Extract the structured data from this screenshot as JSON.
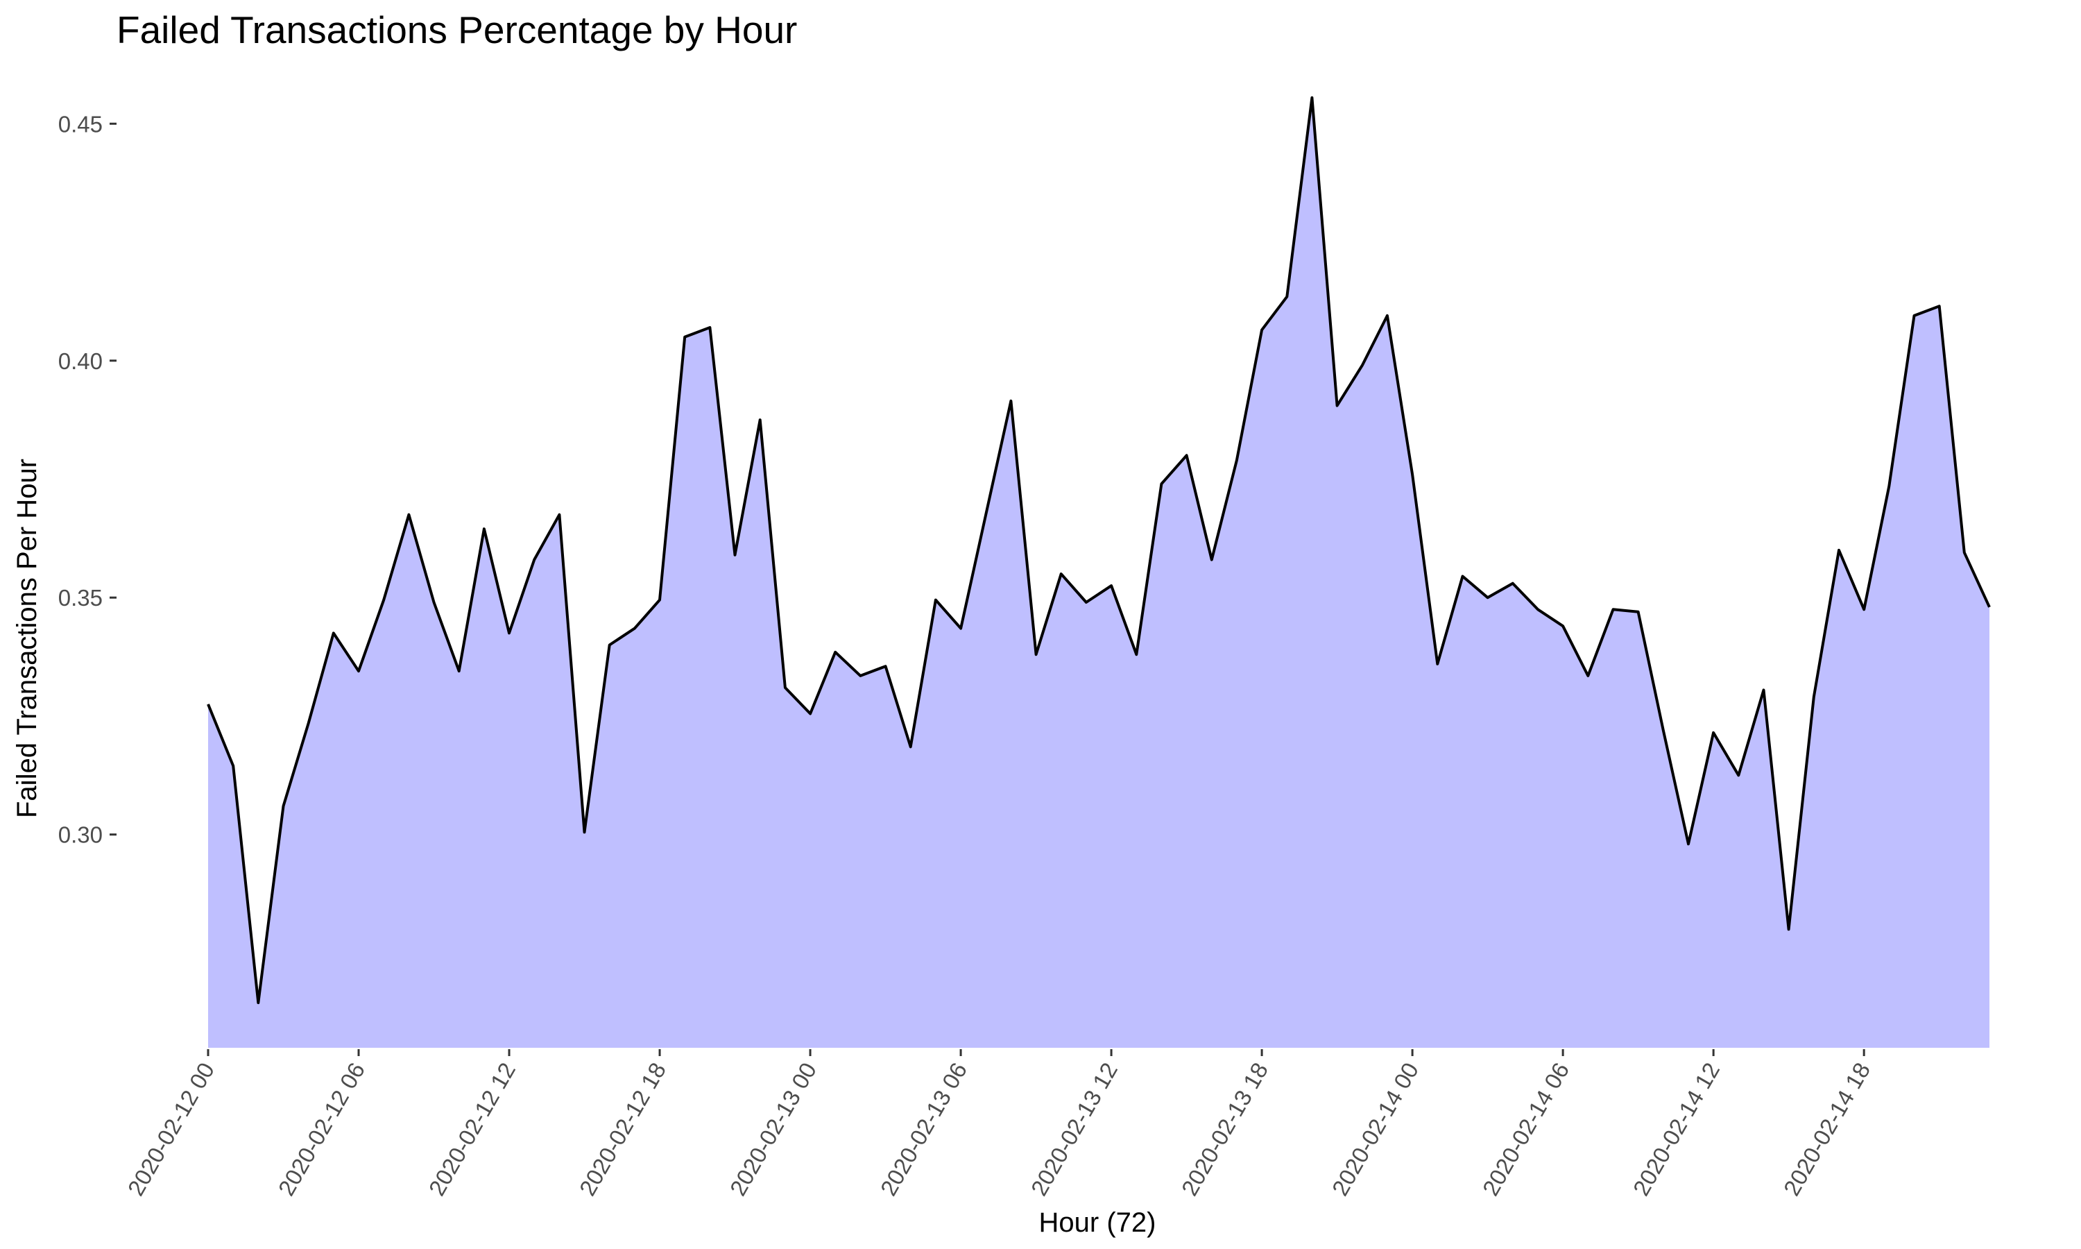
{
  "chart_data": {
    "type": "area",
    "title": "Failed Transactions Percentage by Hour",
    "xlabel": "Hour (72)",
    "ylabel": "Failed Transactions Per Hour",
    "grid": false,
    "legend": "none",
    "x_start": "2020-02-12 00",
    "x_step_hours": 1,
    "x_ticks": [
      "2020-02-12 00",
      "2020-02-12 06",
      "2020-02-12 12",
      "2020-02-12 18",
      "2020-02-13 00",
      "2020-02-13 06",
      "2020-02-13 12",
      "2020-02-13 18",
      "2020-02-14 00",
      "2020-02-14 06",
      "2020-02-14 12",
      "2020-02-14 18"
    ],
    "y_ticks": [
      "0.30",
      "0.35",
      "0.40",
      "0.45"
    ],
    "xlim": [
      "2020-02-12 00",
      "2020-02-14 23"
    ],
    "ylim": [
      0.255,
      0.46
    ],
    "area_baseline": 0.255,
    "colors": {
      "fill": "#bfbfff",
      "line": "#000000"
    },
    "series": [
      {
        "values": [
          0.3275,
          0.3145,
          0.2645,
          0.306,
          0.3235,
          0.3425,
          0.3345,
          0.3495,
          0.3675,
          0.349,
          0.3345,
          0.3645,
          0.3425,
          0.358,
          0.3675,
          0.3005,
          0.34,
          0.3435,
          0.3495,
          0.405,
          0.407,
          0.359,
          0.3875,
          0.331,
          0.3255,
          0.3385,
          0.3335,
          0.3355,
          0.3185,
          0.3495,
          0.3435,
          0.3675,
          0.3915,
          0.338,
          0.355,
          0.349,
          0.3525,
          0.338,
          0.374,
          0.38,
          0.358,
          0.379,
          0.4065,
          0.4135,
          0.4555,
          0.3905,
          0.399,
          0.4095,
          0.376,
          0.336,
          0.3545,
          0.35,
          0.353,
          0.3475,
          0.344,
          0.3335,
          0.3475,
          0.347,
          0.322,
          0.298,
          0.3215,
          0.3125,
          0.3305,
          0.28,
          0.329,
          0.36,
          0.3475,
          0.3735,
          0.4095,
          0.4115,
          0.3595,
          0.348
        ]
      }
    ]
  }
}
